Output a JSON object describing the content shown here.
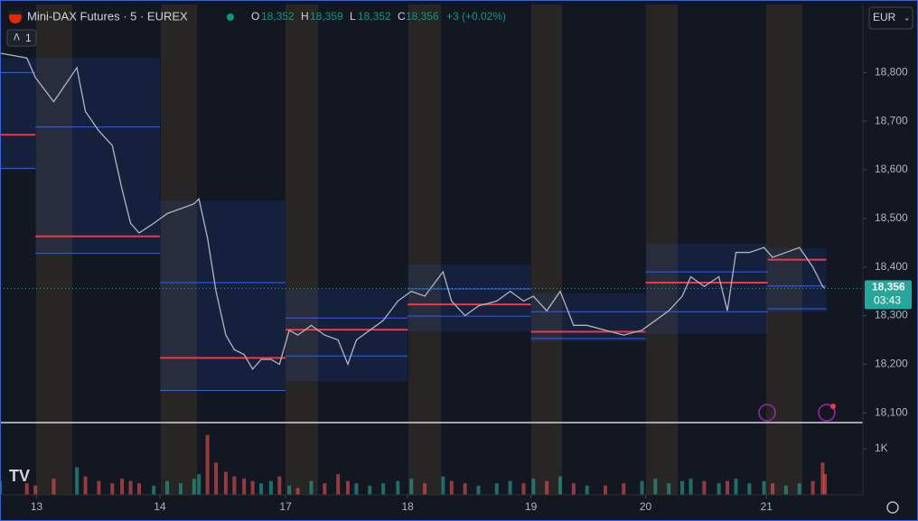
{
  "header": {
    "symbol": "Mini-DAX Futures · 5 · EUREX",
    "o_label": "O",
    "open": "18,352",
    "h_label": "H",
    "high": "18,359",
    "l_label": "L",
    "low": "18,352",
    "c_label": "C",
    "close": "18,356",
    "change": "+3 (+0.02%)",
    "interval_count": "1",
    "currency": "EUR"
  },
  "chart_data": [
    {
      "type": "line",
      "x": [
        -0.3,
        -0.08,
        -0.01,
        0.14,
        0.33,
        0.4,
        0.51,
        0.62,
        0.7,
        0.77,
        0.84,
        0.96,
        1.07,
        1.18,
        1.29,
        1.33,
        1.4,
        1.47,
        1.55,
        1.62,
        1.7,
        1.77,
        1.84,
        1.92,
        1.99,
        2.07,
        2.14,
        2.25,
        2.36,
        2.47,
        2.55,
        2.62,
        2.73,
        2.84,
        2.96,
        3.07,
        3.18,
        3.33,
        3.4,
        3.51,
        3.62,
        3.77,
        3.88,
        3.99,
        4.07,
        4.18,
        4.29,
        4.4,
        4.51,
        4.66,
        4.81,
        4.96,
        5.07,
        5.18,
        5.29,
        5.36,
        5.47,
        5.59,
        5.66,
        5.73,
        5.84,
        5.96,
        6.03,
        6.14,
        6.25,
        6.36,
        6.44,
        6.46
      ],
      "series": [
        {
          "color": "#b2b5be",
          "values": [
            18840,
            18830,
            18790,
            18740,
            18810,
            18720,
            18680,
            18650,
            18560,
            18490,
            18470,
            18490,
            18510,
            18520,
            18530,
            18540,
            18460,
            18350,
            18260,
            18230,
            18220,
            18190,
            18210,
            18210,
            18200,
            18270,
            18260,
            18280,
            18260,
            18250,
            18200,
            18250,
            18270,
            18290,
            18330,
            18350,
            18340,
            18390,
            18330,
            18300,
            18320,
            18330,
            18350,
            18330,
            18340,
            18310,
            18350,
            18280,
            18280,
            18270,
            18260,
            18270,
            18290,
            18310,
            18340,
            18380,
            18360,
            18380,
            18310,
            18430,
            18430,
            18440,
            18420,
            18430,
            18440,
            18400,
            18360,
            18356
          ]
        }
      ],
      "xlim": [
        -0.3,
        6.77
      ],
      "xticks": [
        {
          "value": 0,
          "label": "13"
        },
        {
          "value": 1.01,
          "label": "14"
        },
        {
          "value": 2.04,
          "label": "17"
        },
        {
          "value": 3.04,
          "label": "18"
        },
        {
          "value": 4.05,
          "label": "19"
        },
        {
          "value": 4.99,
          "label": "20"
        },
        {
          "value": 5.98,
          "label": "21"
        }
      ],
      "ylim": [
        18080,
        18940
      ],
      "yticks": [
        {
          "value": 18100,
          "label": "18,100"
        },
        {
          "value": 18200,
          "label": "18,200"
        },
        {
          "value": 18300,
          "label": "18,300"
        },
        {
          "value": 18400,
          "label": "18,400"
        },
        {
          "value": 18500,
          "label": "18,500"
        },
        {
          "value": 18600,
          "label": "18,600"
        },
        {
          "value": 18700,
          "label": "18,700"
        },
        {
          "value": 18800,
          "label": "18,800"
        }
      ],
      "grid": false,
      "last_price": {
        "value": 18356,
        "label": "18,356"
      },
      "countdown": "03:43",
      "profiles": [
        {
          "x0": -0.3,
          "x1": -0.01,
          "high": 18830,
          "low": 18600,
          "poc": 18672,
          "vah": 18800,
          "val": 18603
        },
        {
          "x0": -0.01,
          "x1": 1.01,
          "high": 18830,
          "low": 18428,
          "poc": 18463,
          "vah": 18688,
          "val": 18428
        },
        {
          "x0": 1.01,
          "x1": 2.04,
          "high": 18537,
          "low": 18146,
          "poc": 18213,
          "vah": 18368,
          "val": 18146
        },
        {
          "x0": 2.04,
          "x1": 3.04,
          "high": 18355,
          "low": 18165,
          "poc": 18271,
          "vah": 18295,
          "val": 18217
        },
        {
          "x0": 3.04,
          "x1": 4.05,
          "high": 18405,
          "low": 18267,
          "poc": 18323,
          "vah": 18355,
          "val": 18299
        },
        {
          "x0": 4.05,
          "x1": 4.99,
          "high": 18346,
          "low": 18247,
          "poc": 18267,
          "vah": 18308,
          "val": 18253
        },
        {
          "x0": 4.99,
          "x1": 5.99,
          "high": 18448,
          "low": 18262,
          "poc": 18368,
          "vah": 18390,
          "val": 18308
        },
        {
          "x0": 5.99,
          "x1": 6.47,
          "high": 18439,
          "low": 18308,
          "poc": 18415,
          "vah": 18361,
          "val": 18314
        }
      ]
    },
    {
      "type": "bar",
      "x": [
        -0.3,
        -0.08,
        -0.01,
        0.14,
        0.33,
        0.4,
        0.51,
        0.62,
        0.7,
        0.77,
        0.84,
        0.96,
        1.07,
        1.18,
        1.29,
        1.33,
        1.4,
        1.47,
        1.55,
        1.62,
        1.7,
        1.77,
        1.84,
        1.92,
        1.99,
        2.07,
        2.14,
        2.25,
        2.36,
        2.47,
        2.55,
        2.62,
        2.73,
        2.84,
        2.96,
        3.07,
        3.18,
        3.33,
        3.4,
        3.51,
        3.62,
        3.77,
        3.88,
        3.99,
        4.07,
        4.18,
        4.29,
        4.4,
        4.51,
        4.66,
        4.81,
        4.96,
        5.07,
        5.18,
        5.29,
        5.36,
        5.47,
        5.59,
        5.66,
        5.73,
        5.84,
        5.96,
        6.03,
        6.14,
        6.25,
        6.36,
        6.44,
        6.46
      ],
      "values": [
        300,
        250,
        200,
        350,
        600,
        400,
        300,
        250,
        350,
        300,
        250,
        200,
        300,
        250,
        350,
        450,
        1300,
        700,
        500,
        400,
        350,
        300,
        250,
        300,
        400,
        200,
        150,
        300,
        250,
        450,
        300,
        250,
        200,
        250,
        300,
        350,
        250,
        400,
        300,
        250,
        200,
        250,
        300,
        250,
        350,
        300,
        400,
        250,
        200,
        200,
        250,
        300,
        350,
        250,
        300,
        350,
        300,
        250,
        300,
        350,
        250,
        300,
        250,
        200,
        250,
        300,
        700,
        450
      ],
      "up_color": "#26a69a",
      "down_color": "#ef5350",
      "ylim": [
        0,
        1570
      ],
      "yticks": [
        {
          "value": 1000,
          "label": "1K"
        }
      ]
    }
  ]
}
